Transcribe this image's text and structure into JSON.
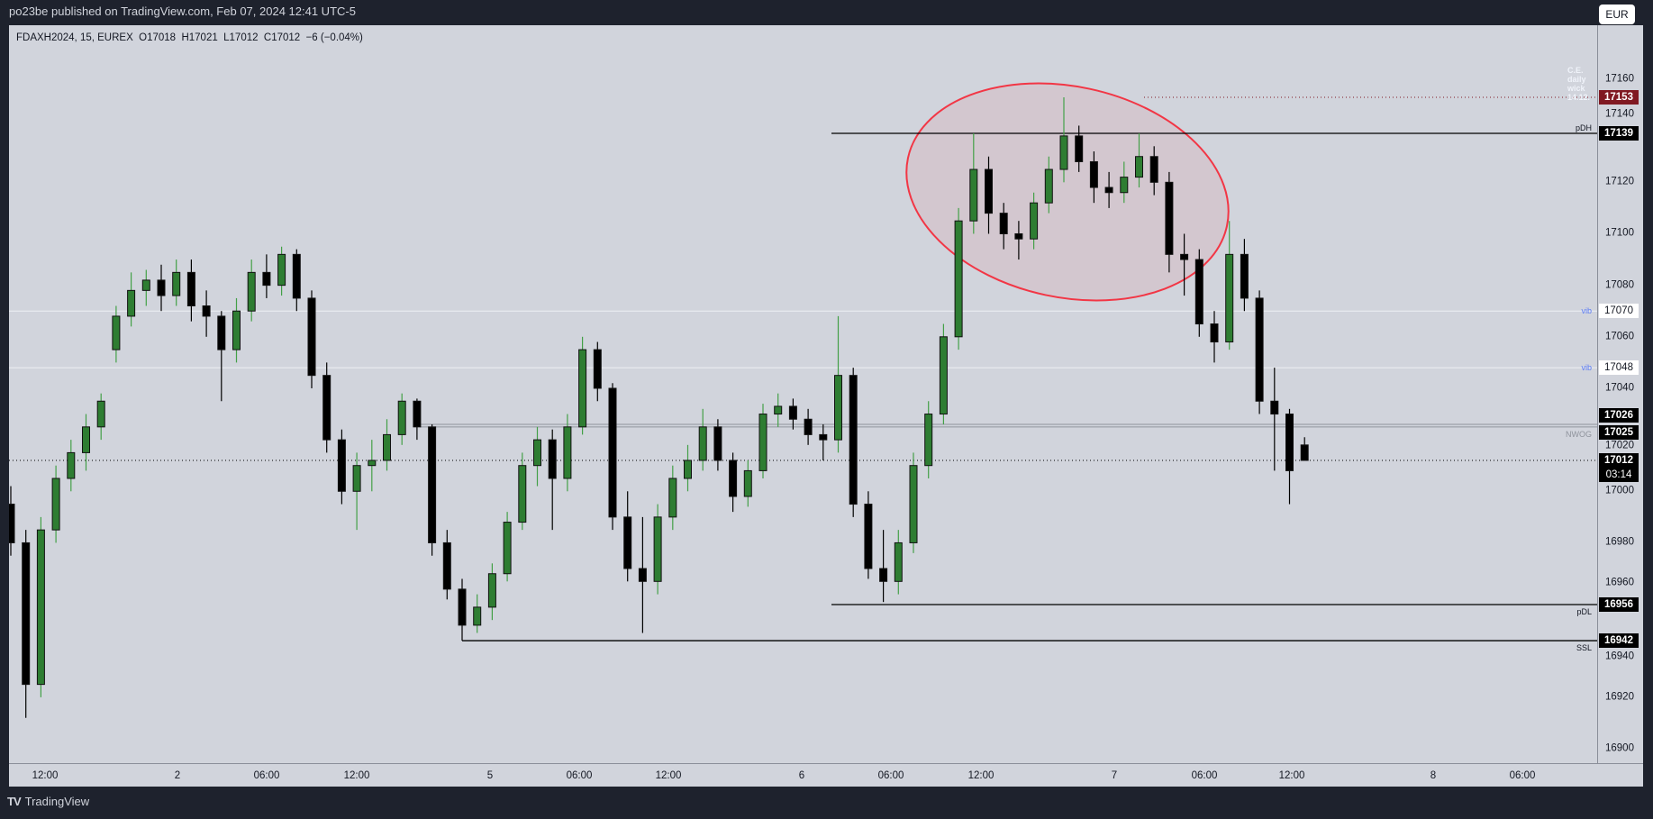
{
  "publish_line": "po23be published on TradingView.com, Feb 07, 2024 12:41 UTC-5",
  "legend": "FDAXH2024, 15, EUREX  O17018  H17021  L17012  C17012  −6 (−0.04%)",
  "currency_button": "EUR",
  "footer_brand": "TradingView",
  "colors": {
    "up": "#2e7d32",
    "up_wick": "#43a047",
    "down": "#000000",
    "background": "#d1d4dc",
    "highlight_ellipse": "#f23645",
    "wick_level": "#801922",
    "vib": "#5b7cf6"
  },
  "chart_data": {
    "type": "candlestick",
    "symbol": "FDAXH2024",
    "interval": "15",
    "ylim": [
      16890,
      17175
    ],
    "y_ticks": [
      "17160",
      "17140",
      "17120",
      "17100",
      "17080",
      "17060",
      "17040",
      "17020",
      "17000",
      "16980",
      "16960",
      "16940",
      "16920",
      "16900"
    ],
    "x_ticks": [
      "12:00",
      "2",
      "06:00",
      "12:00",
      "5",
      "06:00",
      "12:00",
      "6",
      "06:00",
      "12:00",
      "7",
      "06:00",
      "12:00",
      "8",
      "06:00"
    ],
    "candles": [
      [
        16995,
        17002,
        16975,
        16980
      ],
      [
        16980,
        16985,
        16912,
        16925
      ],
      [
        16925,
        16990,
        16920,
        16985
      ],
      [
        16985,
        17010,
        16980,
        17005
      ],
      [
        17005,
        17020,
        17000,
        17015
      ],
      [
        17015,
        17030,
        17008,
        17025
      ],
      [
        17025,
        17038,
        17020,
        17035
      ],
      [
        17055,
        17072,
        17050,
        17068
      ],
      [
        17068,
        17085,
        17064,
        17078
      ],
      [
        17078,
        17086,
        17072,
        17082
      ],
      [
        17082,
        17088,
        17070,
        17076
      ],
      [
        17076,
        17090,
        17072,
        17085
      ],
      [
        17085,
        17090,
        17066,
        17072
      ],
      [
        17072,
        17078,
        17060,
        17068
      ],
      [
        17068,
        17070,
        17035,
        17055
      ],
      [
        17055,
        17075,
        17050,
        17070
      ],
      [
        17070,
        17090,
        17066,
        17085
      ],
      [
        17085,
        17092,
        17075,
        17080
      ],
      [
        17080,
        17095,
        17076,
        17092
      ],
      [
        17092,
        17094,
        17070,
        17075
      ],
      [
        17075,
        17078,
        17040,
        17045
      ],
      [
        17045,
        17050,
        17015,
        17020
      ],
      [
        17020,
        17024,
        16995,
        17000
      ],
      [
        17000,
        17015,
        16985,
        17010
      ],
      [
        17010,
        17020,
        17000,
        17012
      ],
      [
        17012,
        17028,
        17008,
        17022
      ],
      [
        17022,
        17038,
        17018,
        17035
      ],
      [
        17035,
        17036,
        17020,
        17025
      ],
      [
        17025,
        17026,
        16975,
        16980
      ],
      [
        16980,
        16985,
        16958,
        16962
      ],
      [
        16962,
        16966,
        16942,
        16948
      ],
      [
        16948,
        16960,
        16945,
        16955
      ],
      [
        16955,
        16972,
        16950,
        16968
      ],
      [
        16968,
        16992,
        16965,
        16988
      ],
      [
        16988,
        17015,
        16985,
        17010
      ],
      [
        17010,
        17025,
        17002,
        17020
      ],
      [
        17020,
        17024,
        16985,
        17005
      ],
      [
        17005,
        17030,
        17000,
        17025
      ],
      [
        17025,
        17060,
        17022,
        17055
      ],
      [
        17055,
        17058,
        17035,
        17040
      ],
      [
        17040,
        17042,
        16985,
        16990
      ],
      [
        16990,
        17000,
        16965,
        16970
      ],
      [
        16970,
        16990,
        16945,
        16965
      ],
      [
        16965,
        16995,
        16960,
        16990
      ],
      [
        16990,
        17010,
        16985,
        17005
      ],
      [
        17005,
        17018,
        17000,
        17012
      ],
      [
        17012,
        17032,
        17008,
        17025
      ],
      [
        17025,
        17028,
        17008,
        17012
      ],
      [
        17012,
        17015,
        16992,
        16998
      ],
      [
        16998,
        17012,
        16994,
        17008
      ],
      [
        17008,
        17034,
        17005,
        17030
      ],
      [
        17030,
        17038,
        17025,
        17033
      ],
      [
        17033,
        17036,
        17024,
        17028
      ],
      [
        17028,
        17032,
        17018,
        17022
      ],
      [
        17022,
        17026,
        17012,
        17020
      ],
      [
        17020,
        17068,
        17015,
        17045
      ],
      [
        17045,
        17048,
        16990,
        16995
      ],
      [
        16995,
        17000,
        16966,
        16970
      ],
      [
        16970,
        16985,
        16957,
        16965
      ],
      [
        16965,
        16985,
        16960,
        16980
      ],
      [
        16980,
        17015,
        16976,
        17010
      ],
      [
        17010,
        17035,
        17005,
        17030
      ],
      [
        17030,
        17065,
        17026,
        17060
      ],
      [
        17060,
        17110,
        17055,
        17105
      ],
      [
        17105,
        17139,
        17100,
        17125
      ],
      [
        17125,
        17130,
        17100,
        17108
      ],
      [
        17108,
        17112,
        17094,
        17100
      ],
      [
        17100,
        17105,
        17090,
        17098
      ],
      [
        17098,
        17116,
        17094,
        17112
      ],
      [
        17112,
        17130,
        17108,
        17125
      ],
      [
        17125,
        17153,
        17120,
        17138
      ],
      [
        17138,
        17142,
        17124,
        17128
      ],
      [
        17128,
        17132,
        17112,
        17118
      ],
      [
        17118,
        17124,
        17110,
        17116
      ],
      [
        17116,
        17128,
        17112,
        17122
      ],
      [
        17122,
        17139,
        17118,
        17130
      ],
      [
        17130,
        17134,
        17115,
        17120
      ],
      [
        17120,
        17124,
        17085,
        17092
      ],
      [
        17092,
        17100,
        17076,
        17090
      ],
      [
        17090,
        17094,
        17060,
        17065
      ],
      [
        17065,
        17070,
        17050,
        17058
      ],
      [
        17058,
        17105,
        17055,
        17092
      ],
      [
        17092,
        17098,
        17070,
        17075
      ],
      [
        17075,
        17078,
        17030,
        17035
      ],
      [
        17035,
        17048,
        17008,
        17030
      ],
      [
        17030,
        17032,
        16995,
        17008
      ],
      [
        17018,
        17021,
        17012,
        17012
      ]
    ],
    "levels": [
      {
        "id": "ce_wick",
        "price": 17153,
        "label": "C.E. daily wick 14.12.",
        "badge": "17153",
        "style": "dotted"
      },
      {
        "id": "pdh",
        "price": 17139,
        "label": "pDH",
        "badge": "17139",
        "style": "solid"
      },
      {
        "id": "vib1",
        "price": 17070,
        "label": "vib",
        "badge": "17070",
        "style": "light"
      },
      {
        "id": "vib2",
        "price": 17048,
        "label": "vib",
        "badge": "17048",
        "style": "light"
      },
      {
        "id": "nwog_top",
        "price": 17026,
        "label": "",
        "badge": "17026",
        "style": "gray"
      },
      {
        "id": "nwog_bot",
        "price": 17025,
        "label": "NWOG",
        "badge": "17025",
        "style": "gray"
      },
      {
        "id": "last",
        "price": 17012,
        "label": "",
        "badge": "17012",
        "badge_sub": "03:14",
        "style": "last"
      },
      {
        "id": "pdl",
        "price": 16956,
        "label": "pDL",
        "badge": "16956",
        "style": "solid"
      },
      {
        "id": "ssl",
        "price": 16942,
        "label": "SSL",
        "badge": "16942",
        "style": "solid"
      }
    ],
    "annotation": {
      "type": "ellipse"
    }
  }
}
